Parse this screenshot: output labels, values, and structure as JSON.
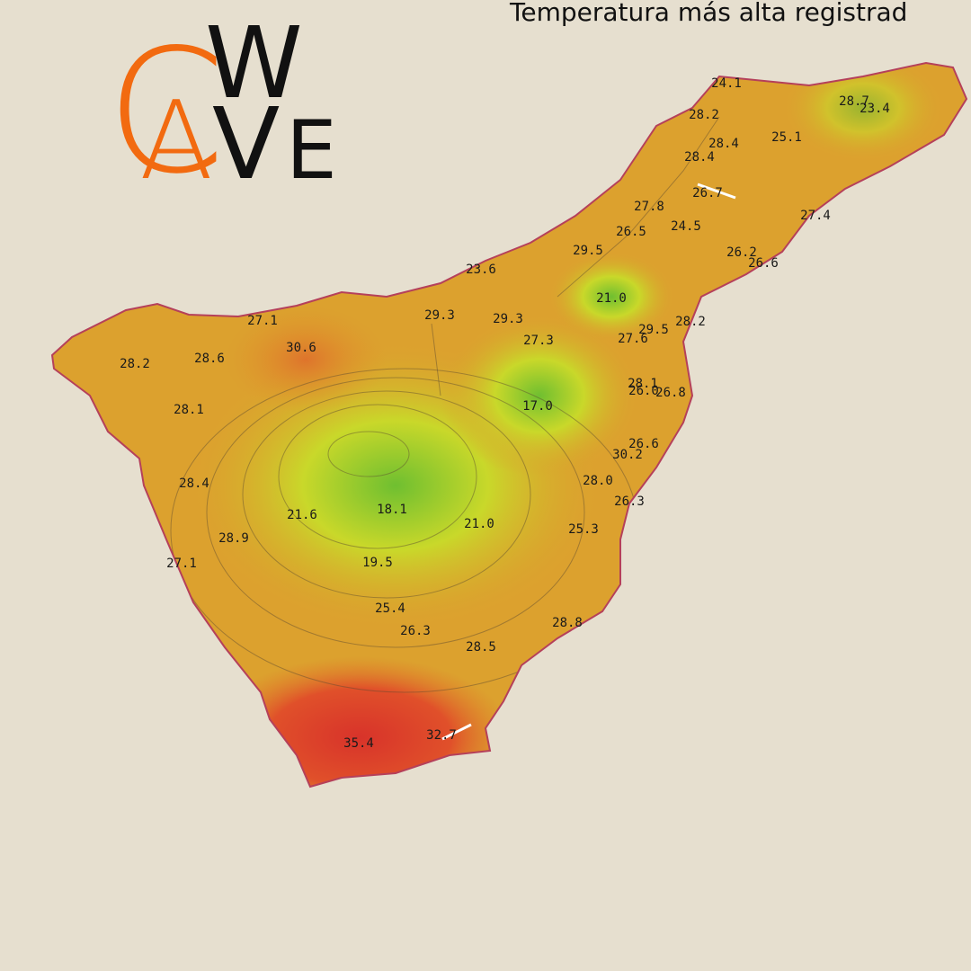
{
  "title": "Temperatura más alta registrad",
  "logo": {
    "letters": [
      "C",
      "A",
      "W",
      "V",
      "E"
    ]
  },
  "stations": [
    {
      "label": "24.1"
    },
    {
      "label": "28.7"
    },
    {
      "label": "23.4"
    },
    {
      "label": "28.2"
    },
    {
      "label": "28.4"
    },
    {
      "label": "25.1"
    },
    {
      "label": "28.4"
    },
    {
      "label": "26.7"
    },
    {
      "label": "27.8"
    },
    {
      "label": "26.5"
    },
    {
      "label": "24.5"
    },
    {
      "label": "27.4"
    },
    {
      "label": "29.5"
    },
    {
      "label": "26.2"
    },
    {
      "label": "26.6"
    },
    {
      "label": "23.6"
    },
    {
      "label": "21.0"
    },
    {
      "label": "29.3"
    },
    {
      "label": "29.3"
    },
    {
      "label": "27.1"
    },
    {
      "label": "29.5"
    },
    {
      "label": "28.2"
    },
    {
      "label": "27.3"
    },
    {
      "label": "27.6"
    },
    {
      "label": "30.6"
    },
    {
      "label": "28.2"
    },
    {
      "label": "28.6"
    },
    {
      "label": "28.1"
    },
    {
      "label": "26.0"
    },
    {
      "label": "26.8"
    },
    {
      "label": "17.0"
    },
    {
      "label": "28.1"
    },
    {
      "label": "26.6"
    },
    {
      "label": "30.2"
    },
    {
      "label": "28.4"
    },
    {
      "label": "28.0"
    },
    {
      "label": "26.3"
    },
    {
      "label": "21.6"
    },
    {
      "label": "18.1"
    },
    {
      "label": "21.0"
    },
    {
      "label": "25.3"
    },
    {
      "label": "28.9"
    },
    {
      "label": "27.1"
    },
    {
      "label": "19.5"
    },
    {
      "label": "25.4"
    },
    {
      "label": "28.8"
    },
    {
      "label": "26.3"
    },
    {
      "label": "28.5"
    },
    {
      "label": "35.4"
    },
    {
      "label": "32.7"
    }
  ]
}
